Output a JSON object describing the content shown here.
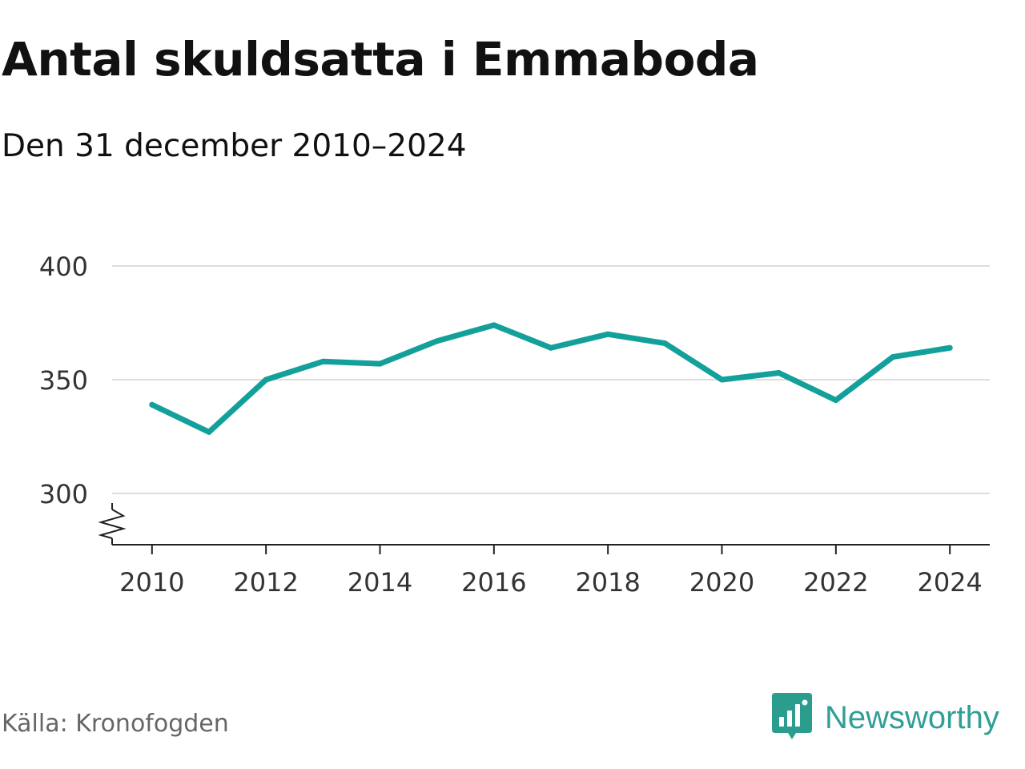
{
  "title": "Antal skuldsatta i Emmaboda",
  "subtitle": "Den 31 december 2010–2024",
  "source": "Källa: Kronofogden",
  "brand": {
    "name": "Newsworthy",
    "icon": "newsworthy-logo-icon",
    "color": "#2a9d8f"
  },
  "chart_data": {
    "type": "line",
    "x": [
      2010,
      2011,
      2012,
      2013,
      2014,
      2015,
      2016,
      2017,
      2018,
      2019,
      2020,
      2021,
      2022,
      2023,
      2024
    ],
    "values": [
      339,
      327,
      350,
      358,
      357,
      367,
      374,
      364,
      370,
      366,
      350,
      353,
      341,
      360,
      364
    ],
    "line_color": "#14a09a",
    "grid_color": "#dddddd",
    "ylim": [
      280,
      400
    ],
    "yticks": [
      300,
      350,
      400
    ],
    "ytick_labels": [
      "300",
      "350",
      "400"
    ],
    "xlim": [
      2009.3,
      2024.7
    ],
    "xticks": [
      2010,
      2012,
      2014,
      2016,
      2018,
      2020,
      2022,
      2024
    ],
    "xtick_labels": [
      "2010",
      "2012",
      "2014",
      "2016",
      "2018",
      "2020",
      "2022",
      "2024"
    ],
    "axis_break": true,
    "grid": true,
    "legend": "none"
  }
}
